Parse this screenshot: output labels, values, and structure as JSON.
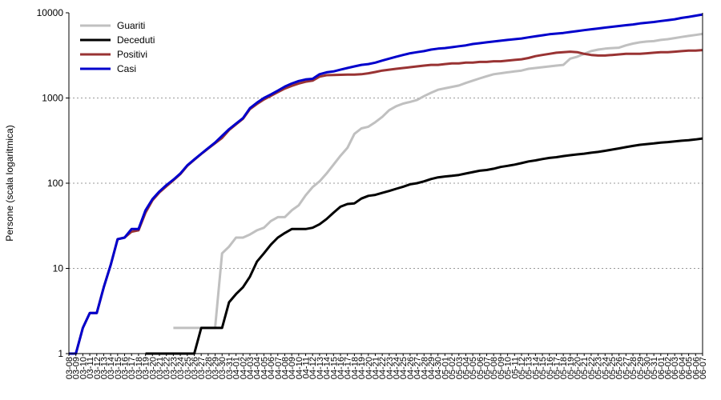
{
  "chart_data": {
    "type": "line",
    "ylabel": "Persone (scala logaritmica)",
    "xlabel": "",
    "yscale": "log",
    "ylim": [
      1,
      10000
    ],
    "y_ticks": [
      "1",
      "10",
      "100",
      "1000",
      "10000"
    ],
    "grid": true,
    "legend_position": "top-left",
    "x": [
      "03-08",
      "03-09",
      "03-10",
      "03-11",
      "03-12",
      "03-13",
      "03-14",
      "03-15",
      "03-16",
      "03-17",
      "03-18",
      "03-19",
      "03-20",
      "03-21",
      "03-22",
      "03-23",
      "03-24",
      "03-25",
      "03-26",
      "03-27",
      "03-28",
      "03-29",
      "03-30",
      "03-31",
      "04-01",
      "04-02",
      "04-03",
      "04-04",
      "04-05",
      "04-06",
      "04-07",
      "04-08",
      "04-09",
      "04-10",
      "04-11",
      "04-12",
      "04-13",
      "04-14",
      "04-15",
      "04-16",
      "04-17",
      "04-18",
      "04-19",
      "04-20",
      "04-21",
      "04-22",
      "04-23",
      "04-24",
      "04-25",
      "04-26",
      "04-27",
      "04-28",
      "04-29",
      "04-30",
      "05-01",
      "05-02",
      "05-03",
      "05-04",
      "05-05",
      "05-06",
      "05-07",
      "05-08",
      "05-09",
      "05-10",
      "05-11",
      "05-12",
      "05-13",
      "05-14",
      "05-15",
      "05-16",
      "05-17",
      "05-18",
      "05-19",
      "05-20",
      "05-21",
      "05-22",
      "05-23",
      "05-24",
      "05-25",
      "05-26",
      "05-27",
      "05-28",
      "05-29",
      "05-30",
      "05-31",
      "06-01",
      "06-02",
      "06-03",
      "06-04",
      "06-05",
      "06-06",
      "06-07"
    ],
    "series": [
      {
        "name": "Guariti",
        "color": "#c0c0c0",
        "values": [
          null,
          null,
          null,
          null,
          null,
          null,
          null,
          null,
          null,
          null,
          null,
          null,
          null,
          null,
          null,
          2,
          2,
          2,
          2,
          2,
          2,
          2,
          15,
          18,
          23,
          23,
          25,
          28,
          30,
          36,
          40,
          40,
          48,
          55,
          72,
          90,
          105,
          130,
          165,
          210,
          260,
          380,
          440,
          460,
          520,
          600,
          720,
          800,
          860,
          900,
          950,
          1050,
          1150,
          1250,
          1300,
          1350,
          1400,
          1500,
          1600,
          1700,
          1800,
          1900,
          1950,
          2000,
          2050,
          2100,
          2200,
          2250,
          2300,
          2350,
          2400,
          2450,
          2900,
          3050,
          3300,
          3550,
          3700,
          3800,
          3850,
          3900,
          4150,
          4350,
          4500,
          4600,
          4650,
          4800,
          4900,
          5050,
          5200,
          5350,
          5500,
          5650
        ]
      },
      {
        "name": "Deceduti",
        "color": "#000000",
        "values": [
          null,
          null,
          null,
          null,
          null,
          null,
          null,
          null,
          null,
          null,
          null,
          1,
          1,
          1,
          1,
          1,
          1,
          1,
          1,
          2,
          2,
          2,
          2,
          4,
          5,
          6,
          8,
          12,
          15,
          19,
          23,
          26,
          29,
          29,
          29,
          30,
          33,
          38,
          45,
          53,
          57,
          58,
          66,
          71,
          73,
          77,
          81,
          86,
          91,
          97,
          100,
          105,
          112,
          117,
          120,
          122,
          125,
          130,
          135,
          140,
          143,
          148,
          155,
          160,
          165,
          172,
          180,
          185,
          192,
          198,
          202,
          208,
          213,
          218,
          222,
          228,
          233,
          240,
          248,
          256,
          265,
          274,
          282,
          288,
          293,
          299,
          304,
          310,
          315,
          320,
          326,
          335
        ]
      },
      {
        "name": "Positivi",
        "color": "#993333",
        "values": [
          1,
          1,
          2,
          3,
          3,
          6,
          11,
          22,
          23,
          27,
          28,
          45,
          63,
          78,
          92,
          108,
          128,
          160,
          188,
          220,
          255,
          295,
          340,
          420,
          490,
          570,
          740,
          850,
          960,
          1060,
          1170,
          1290,
          1390,
          1480,
          1550,
          1600,
          1780,
          1850,
          1860,
          1870,
          1880,
          1880,
          1900,
          1950,
          2020,
          2100,
          2150,
          2200,
          2250,
          2300,
          2350,
          2400,
          2450,
          2450,
          2500,
          2550,
          2550,
          2600,
          2600,
          2650,
          2650,
          2700,
          2700,
          2750,
          2800,
          2850,
          2950,
          3100,
          3200,
          3300,
          3400,
          3450,
          3500,
          3450,
          3300,
          3200,
          3150,
          3150,
          3200,
          3250,
          3300,
          3300,
          3300,
          3350,
          3400,
          3450,
          3450,
          3500,
          3550,
          3600,
          3600,
          3650
        ]
      },
      {
        "name": "Casi",
        "color": "#0000cc",
        "values": [
          1,
          1,
          2,
          3,
          3,
          6,
          11,
          22,
          23,
          29,
          29,
          48,
          65,
          80,
          95,
          110,
          130,
          162,
          190,
          222,
          258,
          300,
          360,
          430,
          500,
          580,
          760,
          880,
          1000,
          1100,
          1220,
          1360,
          1480,
          1580,
          1650,
          1680,
          1900,
          2000,
          2050,
          2150,
          2250,
          2350,
          2450,
          2500,
          2600,
          2750,
          2900,
          3050,
          3200,
          3350,
          3450,
          3550,
          3700,
          3800,
          3850,
          3950,
          4050,
          4150,
          4300,
          4400,
          4500,
          4600,
          4700,
          4800,
          4900,
          5000,
          5150,
          5300,
          5450,
          5600,
          5700,
          5800,
          5950,
          6100,
          6250,
          6400,
          6550,
          6700,
          6850,
          7000,
          7150,
          7300,
          7500,
          7650,
          7800,
          8000,
          8200,
          8400,
          8700,
          8950,
          9250,
          9550
        ]
      }
    ]
  }
}
